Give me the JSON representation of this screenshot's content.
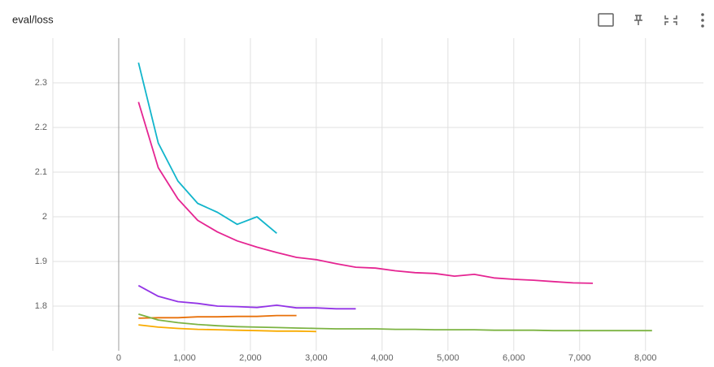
{
  "chart_data": {
    "type": "line",
    "title": "eval/loss",
    "xlim": [
      -1000,
      8880
    ],
    "ylim": [
      1.7,
      2.4
    ],
    "xticks": [
      0,
      {
        "value": 1000,
        "label": "1,000"
      },
      {
        "value": 2000,
        "label": "2,000"
      },
      {
        "value": 3000,
        "label": "3,000"
      },
      {
        "value": 4000,
        "label": "4,000"
      },
      {
        "value": 5000,
        "label": "5,000"
      },
      {
        "value": 6000,
        "label": "6,000"
      },
      {
        "value": 7000,
        "label": "7,000"
      },
      {
        "value": 8000,
        "label": "8,000"
      }
    ],
    "yticks": [
      1.8,
      1.9,
      2,
      2.1,
      2.2,
      2.3
    ],
    "grid": true,
    "series": [
      {
        "color": "#12b5cb",
        "x": [
          300,
          600,
          900,
          1200,
          1500,
          1800,
          2100,
          2400
        ],
        "values": [
          2.345,
          2.165,
          2.08,
          2.03,
          2.01,
          1.983,
          2.0,
          1.963
        ]
      },
      {
        "color": "#e52592",
        "x": [
          300,
          600,
          900,
          1200,
          1500,
          1800,
          2100,
          2400,
          2700,
          3000,
          3300,
          3600,
          3900,
          4200,
          4500,
          4800,
          5100,
          5400,
          5700,
          6000,
          6300,
          6600,
          6900,
          7200
        ],
        "values": [
          2.257,
          2.11,
          2.04,
          1.992,
          1.966,
          1.946,
          1.932,
          1.92,
          1.909,
          1.904,
          1.895,
          1.887,
          1.885,
          1.879,
          1.875,
          1.873,
          1.867,
          1.871,
          1.863,
          1.86,
          1.858,
          1.855,
          1.852,
          1.851
        ]
      },
      {
        "color": "#9334e6",
        "x": [
          300,
          600,
          900,
          1200,
          1500,
          1800,
          2100,
          2400,
          2700,
          3000,
          3300,
          3600
        ],
        "values": [
          1.846,
          1.822,
          1.81,
          1.806,
          1.8,
          1.799,
          1.797,
          1.802,
          1.796,
          1.796,
          1.794,
          1.794
        ]
      },
      {
        "color": "#e8710a",
        "x": [
          300,
          600,
          900,
          1200,
          1500,
          1800,
          2100,
          2400,
          2700
        ],
        "values": [
          1.773,
          1.774,
          1.774,
          1.776,
          1.776,
          1.777,
          1.777,
          1.779,
          1.779
        ]
      },
      {
        "color": "#7cb342",
        "x": [
          300,
          600,
          900,
          1200,
          1500,
          1800,
          2100,
          2400,
          2700,
          3000,
          3300,
          3600,
          3900,
          4200,
          4500,
          4800,
          5100,
          5400,
          5700,
          6000,
          6300,
          6600,
          6900,
          7200,
          7500,
          7800,
          8100
        ],
        "values": [
          1.782,
          1.769,
          1.763,
          1.759,
          1.756,
          1.754,
          1.753,
          1.752,
          1.751,
          1.75,
          1.749,
          1.749,
          1.749,
          1.748,
          1.748,
          1.747,
          1.747,
          1.747,
          1.746,
          1.746,
          1.746,
          1.745,
          1.745,
          1.745,
          1.745,
          1.745,
          1.745
        ]
      },
      {
        "color": "#f9ab00",
        "x": [
          300,
          600,
          900,
          1200,
          1500,
          1800,
          2100,
          2400,
          2700,
          3000
        ],
        "values": [
          1.758,
          1.753,
          1.75,
          1.748,
          1.747,
          1.746,
          1.745,
          1.744,
          1.744,
          1.743
        ]
      }
    ]
  }
}
